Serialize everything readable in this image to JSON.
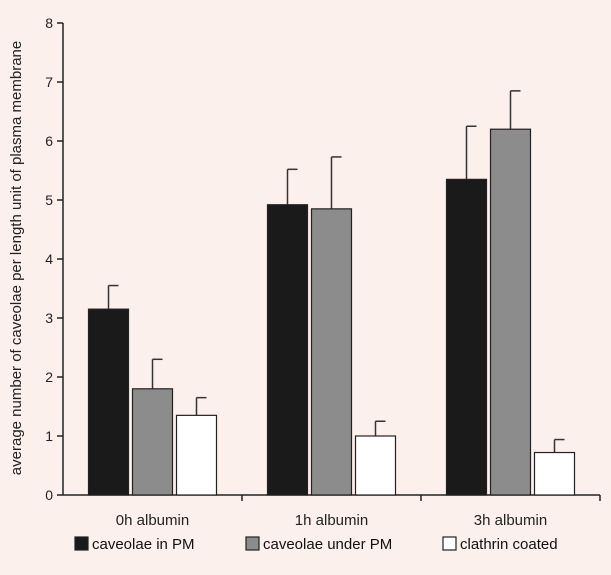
{
  "chart_data": {
    "type": "bar",
    "title": "",
    "xlabel": "",
    "ylabel": "average number of caveolae per length unit of plasma membrane",
    "ylim": [
      0,
      8
    ],
    "yticks": [
      "0",
      "1",
      "2",
      "3",
      "4",
      "5",
      "6",
      "7",
      "8"
    ],
    "categories": [
      "0h albumin",
      "1h albumin",
      "3h albumin"
    ],
    "series": [
      {
        "name": "caveolae in PM",
        "color": "#1a1a1a",
        "values": [
          3.15,
          4.92,
          5.35
        ],
        "errors": [
          0.4,
          0.6,
          0.9
        ]
      },
      {
        "name": "caveolae under PM",
        "color": "#8c8c8c",
        "values": [
          1.8,
          4.85,
          6.2
        ],
        "errors": [
          0.5,
          0.88,
          0.65
        ]
      },
      {
        "name": "clathrin coated",
        "color": "#ffffff",
        "values": [
          1.35,
          1.0,
          0.72
        ],
        "errors": [
          0.3,
          0.25,
          0.22
        ]
      }
    ],
    "legend_position": "bottom",
    "grid": false
  }
}
